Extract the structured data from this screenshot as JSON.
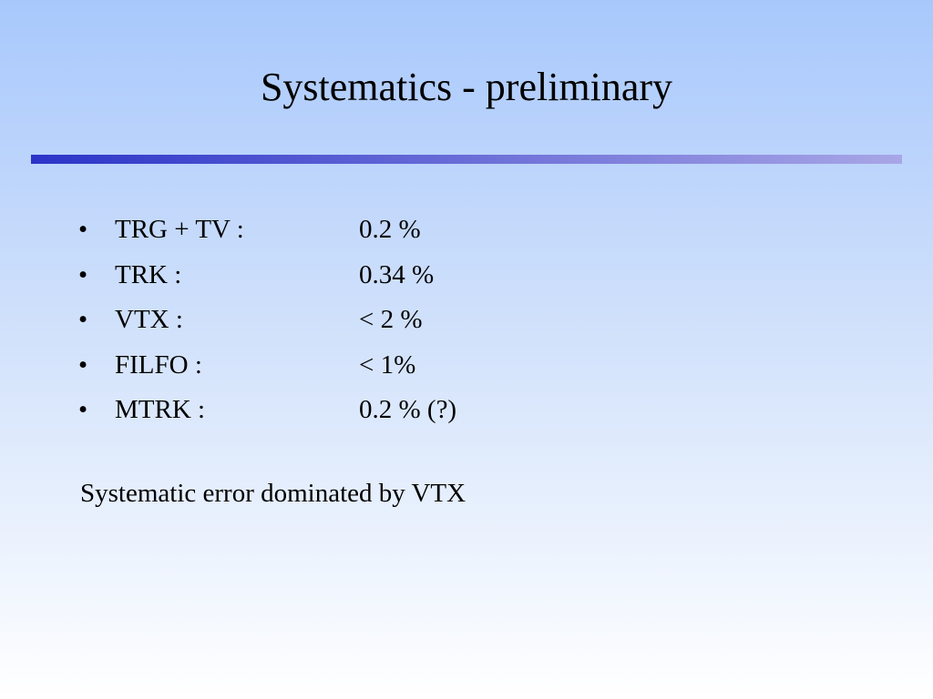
{
  "title": "Systematics - preliminary",
  "items": [
    {
      "label": "TRG + TV :",
      "value": "0.2 %"
    },
    {
      "label": "TRK :",
      "value": "0.34 %"
    },
    {
      "label": "VTX :",
      "value": "< 2 %"
    },
    {
      "label": "FILFO :",
      "value": "< 1%"
    },
    {
      "label": "MTRK :",
      "value": "0.2 % (?)"
    }
  ],
  "conclusion": "Systematic error dominated by VTX"
}
